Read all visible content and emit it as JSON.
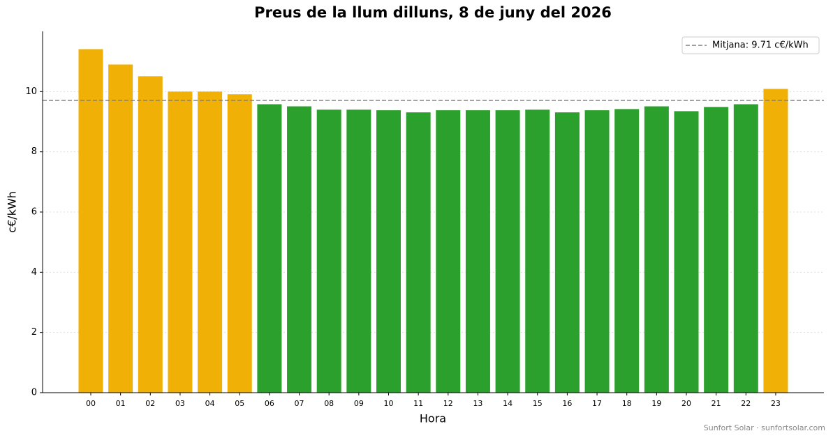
{
  "chart_data": {
    "type": "bar",
    "title": "Preus de la llum dilluns, 8 de juny del 2026",
    "x_label": "Hora",
    "y_label": "c€/kWh",
    "categories": [
      "00",
      "01",
      "02",
      "03",
      "04",
      "05",
      "06",
      "07",
      "08",
      "09",
      "10",
      "11",
      "12",
      "13",
      "14",
      "15",
      "16",
      "17",
      "18",
      "19",
      "20",
      "21",
      "22",
      "23"
    ],
    "values": [
      11.41,
      10.9,
      10.51,
      10.0,
      10.0,
      9.91,
      9.58,
      9.51,
      9.4,
      9.4,
      9.38,
      9.31,
      9.38,
      9.38,
      9.38,
      9.4,
      9.31,
      9.38,
      9.42,
      9.51,
      9.35,
      9.49,
      9.58,
      10.09
    ],
    "colors": [
      "#f0b005",
      "#f0b005",
      "#f0b005",
      "#f0b005",
      "#f0b005",
      "#f0b005",
      "#2ca02c",
      "#2ca02c",
      "#2ca02c",
      "#2ca02c",
      "#2ca02c",
      "#2ca02c",
      "#2ca02c",
      "#2ca02c",
      "#2ca02c",
      "#2ca02c",
      "#2ca02c",
      "#2ca02c",
      "#2ca02c",
      "#2ca02c",
      "#2ca02c",
      "#2ca02c",
      "#2ca02c",
      "#f0b005"
    ],
    "mean": {
      "value": 9.71,
      "label": "Mitjana: 9.71 c€/kWh",
      "color": "#808080"
    },
    "ylim": [
      0,
      12
    ],
    "yticks": [
      0,
      2,
      4,
      6,
      8,
      10
    ],
    "grid": true,
    "legend": "upper right",
    "source": "Sunfort Solar · sunfortsolar.com"
  }
}
